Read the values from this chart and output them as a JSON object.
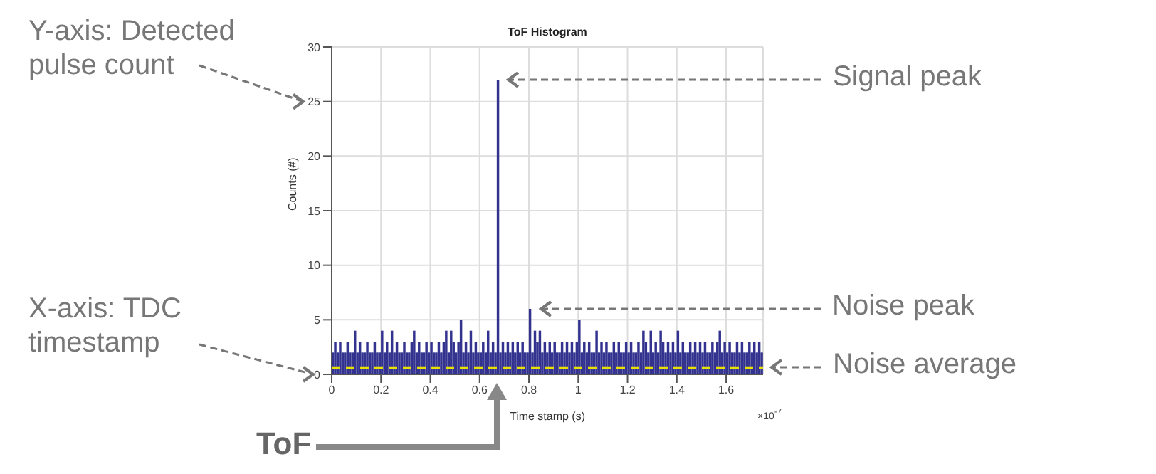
{
  "chart_data": {
    "type": "histogram",
    "title": "ToF Histogram",
    "xlabel": "Time stamp (s)",
    "ylabel": "Counts (#)",
    "color": "#33338f",
    "bins": [
      0,
      0.01,
      0.02,
      0.03,
      0.04,
      0.05,
      0.06,
      0.07,
      0.08,
      0.09,
      0.1,
      0.11,
      0.12,
      0.13,
      0.14,
      0.15,
      0.16,
      0.17,
      0.18,
      0.19,
      0.2,
      0.21,
      0.22,
      0.23,
      0.24,
      0.25,
      0.26,
      0.27,
      0.28,
      0.29,
      0.3,
      0.31,
      0.32,
      0.33,
      0.34,
      0.35,
      0.36,
      0.37,
      0.38,
      0.39,
      0.4,
      0.41,
      0.42,
      0.43,
      0.44,
      0.45,
      0.46,
      0.47,
      0.48,
      0.49,
      0.5,
      0.51,
      0.52,
      0.53,
      0.54,
      0.55,
      0.56,
      0.57,
      0.58,
      0.59,
      0.6,
      0.61,
      0.62,
      0.63,
      0.64,
      0.65,
      0.66,
      0.67,
      0.68,
      0.69,
      0.7,
      0.71,
      0.72,
      0.73,
      0.74,
      0.75,
      0.76,
      0.77,
      0.78,
      0.79,
      0.8,
      0.81,
      0.82,
      0.83,
      0.84,
      0.85,
      0.86,
      0.87,
      0.88,
      0.89,
      0.9,
      0.91,
      0.92,
      0.93,
      0.94,
      0.95,
      0.96,
      0.97,
      0.98,
      0.99,
      1,
      1.01,
      1.02,
      1.03,
      1.04,
      1.05,
      1.06,
      1.07,
      1.08,
      1.09,
      1.1,
      1.11,
      1.12,
      1.13,
      1.14,
      1.15,
      1.16,
      1.17,
      1.18,
      1.19,
      1.2,
      1.21,
      1.22,
      1.23,
      1.24,
      1.25,
      1.26,
      1.27,
      1.28,
      1.29,
      1.3,
      1.31,
      1.32,
      1.33,
      1.34,
      1.35,
      1.36,
      1.37,
      1.38,
      1.39,
      1.4,
      1.41,
      1.42,
      1.43,
      1.44,
      1.45,
      1.46,
      1.47,
      1.48,
      1.49,
      1.5,
      1.51,
      1.52,
      1.53,
      1.54,
      1.55,
      1.56,
      1.57,
      1.58,
      1.59,
      1.6,
      1.61,
      1.62,
      1.63,
      1.64,
      1.65,
      1.66,
      1.67,
      1.68,
      1.69,
      1.7,
      1.71,
      1.72,
      1.73,
      1.74,
      1.75
    ],
    "values": [
      2,
      3,
      2,
      3,
      2,
      2,
      3,
      2,
      2,
      4,
      2,
      3,
      2,
      2,
      3,
      2,
      2,
      3,
      2,
      2,
      4,
      2,
      3,
      2,
      4,
      2,
      3,
      2,
      2,
      3,
      2,
      2,
      3,
      4,
      2,
      3,
      2,
      2,
      3,
      2,
      3,
      2,
      2,
      3,
      2,
      3,
      4,
      2,
      4,
      3,
      2,
      3,
      5,
      2,
      3,
      2,
      4,
      2,
      3,
      2,
      2,
      3,
      2,
      4,
      2,
      3,
      2,
      27,
      2,
      3,
      2,
      3,
      2,
      3,
      2,
      3,
      2,
      3,
      2,
      2,
      6,
      2,
      4,
      3,
      4,
      2,
      3,
      2,
      3,
      2,
      3,
      2,
      2,
      3,
      2,
      3,
      2,
      3,
      2,
      3,
      5,
      2,
      3,
      2,
      3,
      2,
      2,
      4,
      2,
      3,
      2,
      3,
      2,
      2,
      3,
      2,
      3,
      2,
      2,
      3,
      2,
      3,
      2,
      2,
      3,
      2,
      4,
      3,
      2,
      4,
      2,
      3,
      2,
      4,
      3,
      2,
      3,
      2,
      3,
      2,
      4,
      2,
      3,
      2,
      2,
      3,
      2,
      3,
      2,
      3,
      2,
      3,
      2,
      2,
      3,
      2,
      3,
      4,
      2,
      3,
      2,
      3,
      2,
      2,
      3,
      2,
      3,
      2,
      2,
      3,
      2,
      3,
      2,
      3,
      2
    ],
    "xlim": [
      0,
      1.75
    ],
    "xticks": [
      0,
      0.2,
      0.4,
      0.6,
      0.8,
      1,
      1.2,
      1.4,
      1.6
    ],
    "ylim": [
      0,
      30
    ],
    "yticks": [
      0,
      5,
      10,
      15,
      20,
      25,
      30
    ],
    "grid": true,
    "ref_lines": [
      {
        "axis": "y",
        "value": 0.6,
        "label": "Noise average",
        "color": "#e8e000",
        "line_style": "dashed"
      }
    ],
    "annotations": [
      "Y-axis: Detected pulse count",
      "X-axis: TDC timestamp",
      "×10$^{-7}$",
      {
        "text": "Signal peak",
        "x": 0.67,
        "y": 27
      },
      {
        "text": "Noise peak",
        "x": 0.8,
        "y": 6
      },
      "ToF"
    ]
  }
}
